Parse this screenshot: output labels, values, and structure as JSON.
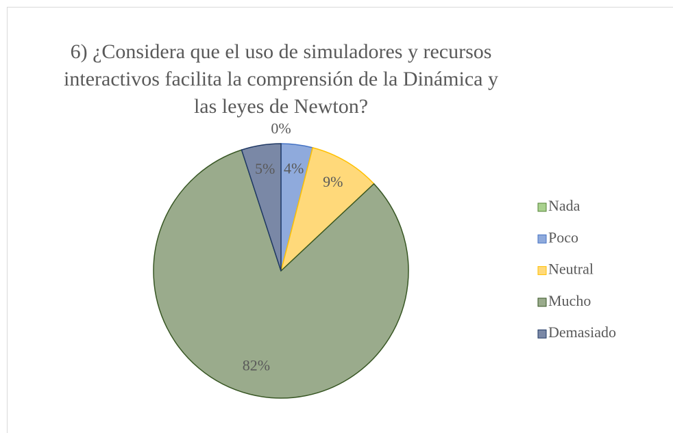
{
  "chart_data": {
    "type": "pie",
    "title": "6) ¿Considera que el uso de simuladores y recursos interactivos facilita la comprensión de la Dinámica y las leyes de Newton?",
    "categories": [
      "Nada",
      "Poco",
      "Neutral",
      "Mucho",
      "Demasiado"
    ],
    "values": [
      0,
      4,
      9,
      82,
      5
    ],
    "value_labels": [
      "0%",
      "4%",
      "9%",
      "82%",
      "5%"
    ],
    "colors": [
      "#a9d18e",
      "#8faadc",
      "#ffd97a",
      "#9aab8c",
      "#7a88a6"
    ],
    "legend": "right"
  }
}
